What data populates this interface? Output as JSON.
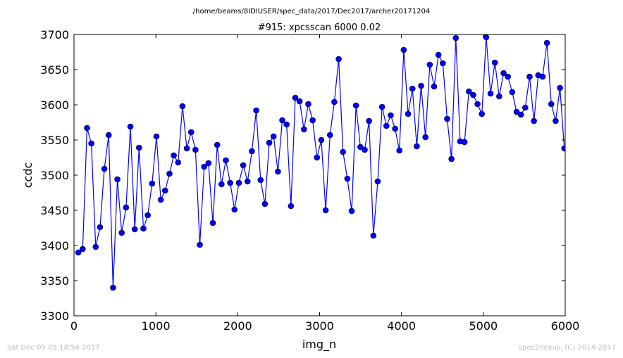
{
  "chart_data": {
    "type": "line",
    "suptitle": "/home/beams/8IDIUSER/spec_data/2017/Dec2017/archer20171204",
    "title": "#915: xpcsscan 6000 0.02",
    "xlabel": "img_n",
    "ylabel": "ccdc",
    "xlim": [
      0,
      6000
    ],
    "ylim": [
      3300,
      3700
    ],
    "xticks": [
      "0",
      "1000",
      "2000",
      "3000",
      "4000",
      "5000",
      "6000"
    ],
    "yticks": [
      "3300",
      "3350",
      "3400",
      "3450",
      "3500",
      "3550",
      "3600",
      "3650",
      "3700"
    ],
    "grid": false,
    "series": [
      {
        "color": "#0000ff",
        "marker": "circle",
        "x": [
          53,
          106,
          159,
          212,
          265,
          318,
          371,
          424,
          477,
          530,
          583,
          636,
          689,
          742,
          795,
          848,
          901,
          954,
          1007,
          1060,
          1113,
          1166,
          1219,
          1272,
          1325,
          1378,
          1431,
          1484,
          1537,
          1590,
          1643,
          1696,
          1749,
          1802,
          1855,
          1908,
          1961,
          2014,
          2067,
          2120,
          2173,
          2226,
          2279,
          2332,
          2385,
          2438,
          2491,
          2544,
          2597,
          2650,
          2703,
          2756,
          2809,
          2862,
          2915,
          2968,
          3021,
          3074,
          3127,
          3180,
          3233,
          3286,
          3339,
          3392,
          3445,
          3498,
          3551,
          3604,
          3657,
          3710,
          3763,
          3816,
          3869,
          3922,
          3975,
          4028,
          4081,
          4134,
          4187,
          4240,
          4293,
          4346,
          4399,
          4452,
          4505,
          4558,
          4611,
          4664,
          4717,
          4770,
          4823,
          4876,
          4929,
          4982,
          5035,
          5088,
          5141,
          5194,
          5247,
          5300,
          5353,
          5406,
          5459,
          5512,
          5565,
          5618,
          5671,
          5724,
          5777,
          5830,
          5883,
          5936,
          5989
        ],
        "y": [
          3390,
          3395,
          3567,
          3545,
          3398,
          3426,
          3509,
          3557,
          3340,
          3494,
          3418,
          3454,
          3569,
          3423,
          3539,
          3424,
          3443,
          3488,
          3555,
          3465,
          3478,
          3502,
          3528,
          3518,
          3598,
          3538,
          3561,
          3536,
          3401,
          3512,
          3517,
          3432,
          3543,
          3487,
          3521,
          3489,
          3451,
          3489,
          3514,
          3491,
          3534,
          3592,
          3493,
          3459,
          3546,
          3555,
          3505,
          3578,
          3572,
          3456,
          3610,
          3605,
          3565,
          3601,
          3578,
          3525,
          3550,
          3450,
          3557,
          3604,
          3665,
          3533,
          3495,
          3449,
          3599,
          3540,
          3536,
          3577,
          3414,
          3491,
          3597,
          3570,
          3585,
          3566,
          3535,
          3678,
          3587,
          3623,
          3541,
          3627,
          3554,
          3657,
          3626,
          3671,
          3659,
          3580,
          3523,
          3695,
          3548,
          3547,
          3619,
          3614,
          3601,
          3587,
          3696,
          3616,
          3660,
          3612,
          3645,
          3640,
          3618,
          3590,
          3586,
          3596,
          3640,
          3577,
          3642,
          3640,
          3688,
          3601,
          3577,
          3624,
          3538
        ]
      }
    ]
  },
  "footer": {
    "timestamp": "Sat Dec 09 05:18:54 2017",
    "credit": "spec2nexus, (C) 2014-2017"
  }
}
